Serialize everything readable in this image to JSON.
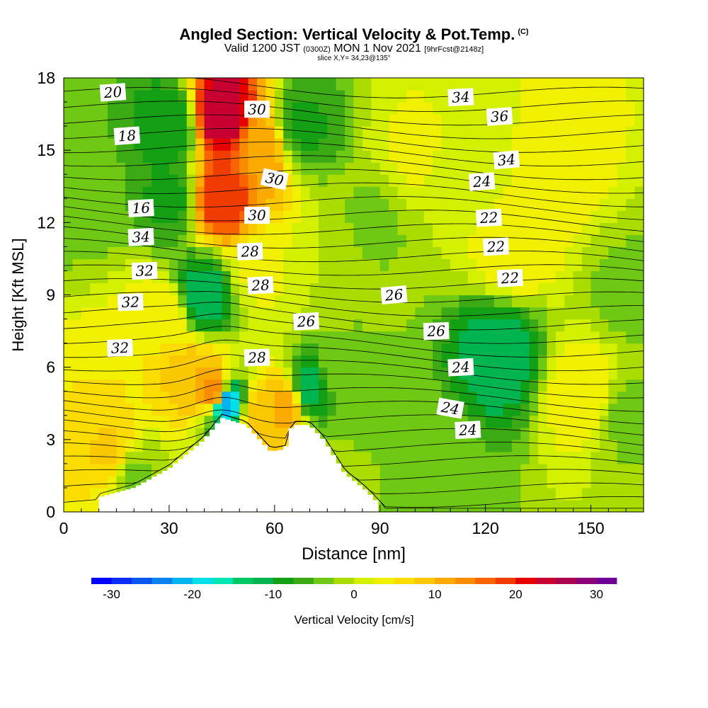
{
  "title": {
    "main": "Angled Section: Vertical Velocity & Pot.Temp.",
    "copyright": "(C)",
    "valid_a": "Valid 1200 JST",
    "valid_z": "(0300Z)",
    "valid_b": "MON 1 Nov 2021",
    "fcst": "[9hrFcst@2148z]",
    "slice": "slice X,Y= 34,23@135°"
  },
  "chart_data": {
    "type": "heatmap",
    "xlabel": "Distance [nm]",
    "ylabel": "Height [Kft MSL]",
    "xlim": [
      0,
      165
    ],
    "ylim": [
      0,
      18
    ],
    "xticks": [
      0,
      30,
      60,
      90,
      120,
      150
    ],
    "yticks": [
      0,
      3,
      6,
      9,
      12,
      15,
      18
    ],
    "colorbar": {
      "label": "Vertical Velocity [cm/s]",
      "ticks": [
        -30,
        -20,
        -10,
        0,
        10,
        20,
        30
      ],
      "range": [
        -32.5,
        32.5
      ],
      "step": 2.5,
      "colors": [
        "#0000ff",
        "#0a2cf4",
        "#0a57f0",
        "#0a82f0",
        "#00b4f0",
        "#00e0e6",
        "#00e6b4",
        "#00c864",
        "#00b450",
        "#14a014",
        "#3caa14",
        "#6ec814",
        "#aadc00",
        "#d2f000",
        "#f0f000",
        "#fadc00",
        "#fac800",
        "#faaa00",
        "#fa8c00",
        "#fa6400",
        "#f03c00",
        "#e60000",
        "#c80032",
        "#aa0050",
        "#8c0078",
        "#6e0096"
      ]
    },
    "potential_temperature_labels": [
      "16",
      "18",
      "20",
      "22",
      "22",
      "22",
      "24",
      "24",
      "24",
      "24",
      "26",
      "26",
      "26",
      "28",
      "28",
      "28",
      "30",
      "30",
      "30",
      "32",
      "32",
      "32",
      "34",
      "34",
      "34",
      "36"
    ],
    "field_values": [
      {
        "x": 3,
        "y": 16,
        "w": -5
      },
      {
        "x": 5,
        "y": 12.5,
        "w": -3
      },
      {
        "x": 13,
        "y": 5,
        "w": 5
      },
      {
        "x": 13,
        "y": 2.5,
        "w": 8
      },
      {
        "x": 20,
        "y": 1.5,
        "w": -3
      },
      {
        "x": 28,
        "y": 8,
        "w": 5
      },
      {
        "x": 30,
        "y": 16,
        "w": -10
      },
      {
        "x": 30,
        "y": 13,
        "w": -8
      },
      {
        "x": 40,
        "y": 9,
        "w": -12
      },
      {
        "x": 37,
        "y": 5.5,
        "w": 10
      },
      {
        "x": 43,
        "y": 5,
        "w": 15
      },
      {
        "x": 46,
        "y": 4.5,
        "w": -22
      },
      {
        "x": 45,
        "y": 16.5,
        "w": 25
      },
      {
        "x": 45,
        "y": 13,
        "w": 20
      },
      {
        "x": 56,
        "y": 15,
        "w": 12
      },
      {
        "x": 55,
        "y": 10,
        "w": 3
      },
      {
        "x": 56,
        "y": 4,
        "w": 10
      },
      {
        "x": 64,
        "y": 4.5,
        "w": 12
      },
      {
        "x": 69,
        "y": 5,
        "w": -12
      },
      {
        "x": 68,
        "y": 16,
        "w": -8
      },
      {
        "x": 80,
        "y": 6,
        "w": -3
      },
      {
        "x": 88,
        "y": 12,
        "w": -3
      },
      {
        "x": 100,
        "y": 15,
        "w": 3
      },
      {
        "x": 115,
        "y": 14,
        "w": 0
      },
      {
        "x": 124,
        "y": 6.5,
        "w": -12
      },
      {
        "x": 128,
        "y": 11,
        "w": 5
      },
      {
        "x": 140,
        "y": 14,
        "w": 4
      },
      {
        "x": 148,
        "y": 5,
        "w": 5
      },
      {
        "x": 160,
        "y": 9,
        "w": -3
      },
      {
        "x": 160,
        "y": 4,
        "w": -3
      },
      {
        "x": 105,
        "y": 2,
        "w": -3
      },
      {
        "x": 75,
        "y": 10,
        "w": 0
      }
    ],
    "terrain": [
      {
        "x": 10,
        "h": 0.6
      },
      {
        "x": 20,
        "h": 1.0
      },
      {
        "x": 30,
        "h": 1.8
      },
      {
        "x": 40,
        "h": 3.0
      },
      {
        "x": 45,
        "h": 3.9
      },
      {
        "x": 52,
        "h": 3.6
      },
      {
        "x": 59,
        "h": 2.5
      },
      {
        "x": 63,
        "h": 2.6
      },
      {
        "x": 65,
        "h": 3.6
      },
      {
        "x": 70,
        "h": 3.6
      },
      {
        "x": 74,
        "h": 3.0
      },
      {
        "x": 80,
        "h": 1.6
      },
      {
        "x": 86,
        "h": 0.9
      },
      {
        "x": 90,
        "h": 0.3
      }
    ]
  }
}
